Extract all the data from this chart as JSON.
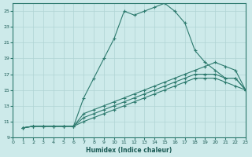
{
  "xlabel": "Humidex (Indice chaleur)",
  "background_color": "#cdeaea",
  "grid_color": "#b0d4d4",
  "line_color": "#2d7a6e",
  "xlim": [
    0,
    23
  ],
  "ylim": [
    9,
    26
  ],
  "xticks": [
    0,
    1,
    2,
    3,
    4,
    5,
    6,
    7,
    8,
    9,
    10,
    11,
    12,
    13,
    14,
    15,
    16,
    17,
    18,
    19,
    20,
    21,
    22,
    23
  ],
  "yticks": [
    9,
    11,
    13,
    15,
    17,
    19,
    21,
    23,
    25
  ],
  "line1_x": [
    1,
    2,
    3,
    4,
    5,
    6,
    7,
    8,
    9,
    10,
    11,
    12,
    13,
    14,
    15,
    16,
    17,
    18,
    19,
    20,
    21,
    22,
    23
  ],
  "line1_y": [
    10.2,
    10.4,
    10.4,
    10.4,
    10.4,
    10.4,
    14.0,
    16.5,
    19.0,
    21.5,
    25.0,
    24.5,
    25.0,
    25.5,
    26.0,
    25.0,
    23.5,
    20.0,
    18.5,
    17.5,
    16.5,
    16.5,
    15.0
  ],
  "line2_x": [
    1,
    2,
    3,
    4,
    5,
    6,
    7,
    8,
    9,
    10,
    11,
    12,
    13,
    14,
    15,
    16,
    17,
    18,
    19,
    20,
    21,
    22,
    23
  ],
  "line2_y": [
    10.2,
    10.4,
    10.4,
    10.4,
    10.4,
    10.4,
    12.0,
    12.5,
    13.0,
    13.5,
    14.0,
    14.5,
    15.0,
    15.5,
    16.0,
    16.5,
    17.0,
    17.5,
    18.0,
    18.5,
    18.0,
    17.5,
    15.0
  ],
  "line3_x": [
    1,
    2,
    3,
    4,
    5,
    6,
    7,
    8,
    9,
    10,
    11,
    12,
    13,
    14,
    15,
    16,
    17,
    18,
    19,
    20,
    21,
    22,
    23
  ],
  "line3_y": [
    10.2,
    10.4,
    10.4,
    10.4,
    10.4,
    10.4,
    11.5,
    12.0,
    12.5,
    13.0,
    13.5,
    14.0,
    14.5,
    15.0,
    15.5,
    16.0,
    16.5,
    17.0,
    17.0,
    17.0,
    16.5,
    16.5,
    15.0
  ],
  "line4_x": [
    1,
    2,
    3,
    4,
    5,
    6,
    7,
    8,
    9,
    10,
    11,
    12,
    13,
    14,
    15,
    16,
    17,
    18,
    19,
    20,
    21,
    22,
    23
  ],
  "line4_y": [
    10.2,
    10.4,
    10.4,
    10.4,
    10.4,
    10.4,
    11.0,
    11.5,
    12.0,
    12.5,
    13.0,
    13.5,
    14.0,
    14.5,
    15.0,
    15.5,
    16.0,
    16.5,
    16.5,
    16.5,
    16.0,
    15.5,
    15.0
  ]
}
